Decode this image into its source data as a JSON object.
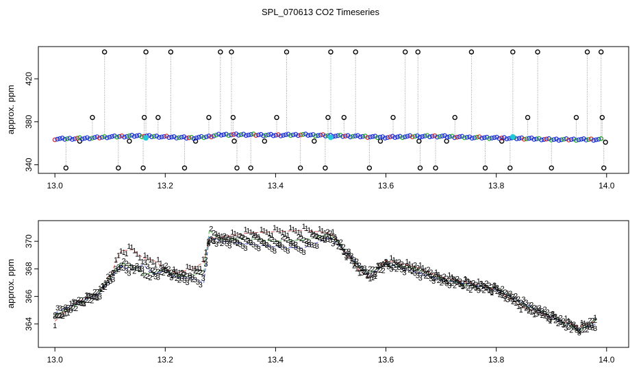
{
  "title": "SPL_070613  CO2 Timeseries",
  "colors": {
    "frame": "#000000",
    "raw_points": "#000000",
    "raw_line": "#999999",
    "ch1": "#d62020",
    "ch2": "#18a818",
    "ch3": "#1a2fd6",
    "flag": "#20c8d8"
  },
  "chart_data": [
    {
      "type": "scatter",
      "ylabel": "approx. ppm",
      "xlim": [
        12.97,
        14.04
      ],
      "ylim": [
        332,
        450
      ],
      "x_ticks": [
        13.0,
        13.2,
        13.4,
        13.6,
        13.8,
        14.0
      ],
      "x_tick_labels": [
        "13.0",
        "13.2",
        "13.4",
        "13.6",
        "13.8",
        "14.0"
      ],
      "y_ticks": [
        340,
        380,
        420
      ],
      "y_tick_labels": [
        "340",
        "380",
        "420"
      ],
      "baseline": {
        "x": [
          13.0,
          13.05,
          13.1,
          13.15,
          13.2,
          13.25,
          13.275,
          13.3,
          13.35,
          13.4,
          13.45,
          13.5,
          13.55,
          13.6,
          13.65,
          13.7,
          13.75,
          13.8,
          13.85,
          13.9,
          13.95,
          13.99
        ],
        "y": [
          364,
          364.5,
          366,
          367,
          366,
          365,
          366,
          368,
          368,
          367.5,
          368,
          367,
          366.5,
          365.5,
          366.5,
          366.5,
          365.5,
          365,
          364.5,
          363.5,
          363.5,
          363.5
        ]
      },
      "outliers_high": [
        13.09,
        13.165,
        13.21,
        13.3,
        13.32,
        13.42,
        13.5,
        13.545,
        13.635,
        13.658,
        13.755,
        13.83,
        13.875,
        13.965,
        13.99
      ],
      "outliers_low": [
        13.02,
        13.115,
        13.16,
        13.235,
        13.33,
        13.355,
        13.445,
        13.49,
        13.57,
        13.662,
        13.69,
        13.78,
        13.825,
        13.9,
        13.995
      ],
      "outliers_mid": [
        {
          "x": 13.068,
          "y": 384
        },
        {
          "x": 13.162,
          "y": 384
        },
        {
          "x": 13.187,
          "y": 384
        },
        {
          "x": 13.279,
          "y": 384
        },
        {
          "x": 13.323,
          "y": 384
        },
        {
          "x": 13.402,
          "y": 384
        },
        {
          "x": 13.495,
          "y": 384
        },
        {
          "x": 13.524,
          "y": 384
        },
        {
          "x": 13.613,
          "y": 384
        },
        {
          "x": 13.725,
          "y": 384
        },
        {
          "x": 13.857,
          "y": 384
        },
        {
          "x": 13.945,
          "y": 384
        },
        {
          "x": 13.992,
          "y": 384
        },
        {
          "x": 13.045,
          "y": 362
        },
        {
          "x": 13.135,
          "y": 362
        },
        {
          "x": 13.255,
          "y": 362
        },
        {
          "x": 13.325,
          "y": 362
        },
        {
          "x": 13.38,
          "y": 362
        },
        {
          "x": 13.47,
          "y": 362
        },
        {
          "x": 13.59,
          "y": 362
        },
        {
          "x": 13.66,
          "y": 362
        },
        {
          "x": 13.71,
          "y": 362
        },
        {
          "x": 13.81,
          "y": 362
        },
        {
          "x": 13.998,
          "y": 361
        }
      ],
      "flags": [
        {
          "x": 13.165,
          "y": 365
        },
        {
          "x": 13.5,
          "y": 365.5
        },
        {
          "x": 13.83,
          "y": 366
        }
      ]
    },
    {
      "type": "line",
      "ylabel": "approx. ppm",
      "xlim": [
        12.97,
        14.04
      ],
      "ylim": [
        362.3,
        371.5
      ],
      "x_ticks": [
        13.0,
        13.2,
        13.4,
        13.6,
        13.8,
        14.0
      ],
      "x_tick_labels": [
        "13.0",
        "13.2",
        "13.4",
        "13.6",
        "13.8",
        "14.0"
      ],
      "y_ticks": [
        364,
        366,
        368,
        370
      ],
      "y_tick_labels": [
        "364",
        "366",
        "368",
        "370"
      ],
      "series": [
        {
          "label": "1",
          "offset": 0.4,
          "x": [
            13.0,
            13.04,
            13.08,
            13.1,
            13.12,
            13.14,
            13.16,
            13.18,
            13.2,
            13.22,
            13.25,
            13.27,
            13.28,
            13.3,
            13.35,
            13.4,
            13.45,
            13.5,
            13.55,
            13.57,
            13.6,
            13.65,
            13.7,
            13.75,
            13.8,
            13.85,
            13.9,
            13.95,
            13.98
          ],
          "y": [
            364.2,
            365.6,
            366.2,
            367.5,
            369.3,
            369.4,
            368.8,
            368.6,
            368.0,
            367.7,
            368.0,
            368.5,
            370.2,
            370.3,
            370.6,
            370.7,
            370.8,
            370.6,
            368.0,
            367.3,
            368.6,
            368.2,
            367.4,
            367.0,
            366.5,
            365.2,
            364.5,
            363.8,
            364.2
          ]
        },
        {
          "label": "2",
          "offset": -0.4,
          "x": [
            13.0,
            13.04,
            13.08,
            13.1,
            13.12,
            13.14,
            13.16,
            13.18,
            13.2,
            13.22,
            13.25,
            13.27,
            13.28,
            13.3,
            13.35,
            13.4,
            13.45,
            13.5,
            13.55,
            13.57,
            13.6,
            13.65,
            13.7,
            13.75,
            13.8,
            13.85,
            13.9,
            13.95,
            13.98
          ],
          "y": [
            364.6,
            365.4,
            366.3,
            367.4,
            368.4,
            368.2,
            367.6,
            367.7,
            368.0,
            367.5,
            367.5,
            367.8,
            370.8,
            370.1,
            370.2,
            370.0,
            370.1,
            370.5,
            368.2,
            367.7,
            368.3,
            368.1,
            367.3,
            366.8,
            366.6,
            365.4,
            364.6,
            363.5,
            364.3
          ]
        },
        {
          "label": "3",
          "offset": 0,
          "x": [
            13.0,
            13.04,
            13.08,
            13.1,
            13.12,
            13.14,
            13.16,
            13.18,
            13.2,
            13.22,
            13.25,
            13.27,
            13.28,
            13.3,
            13.35,
            13.4,
            13.45,
            13.5,
            13.55,
            13.57,
            13.6,
            13.65,
            13.7,
            13.75,
            13.8,
            13.85,
            13.9,
            13.95,
            13.98
          ],
          "y": [
            364.8,
            365.5,
            366.2,
            367.2,
            368.2,
            367.9,
            368.3,
            367.6,
            367.9,
            367.4,
            367.3,
            367.0,
            370.3,
            370.0,
            369.8,
            369.6,
            369.5,
            370.3,
            368.3,
            367.5,
            368.4,
            367.8,
            367.2,
            366.9,
            366.5,
            365.5,
            364.5,
            363.6,
            364.0
          ]
        }
      ]
    }
  ]
}
